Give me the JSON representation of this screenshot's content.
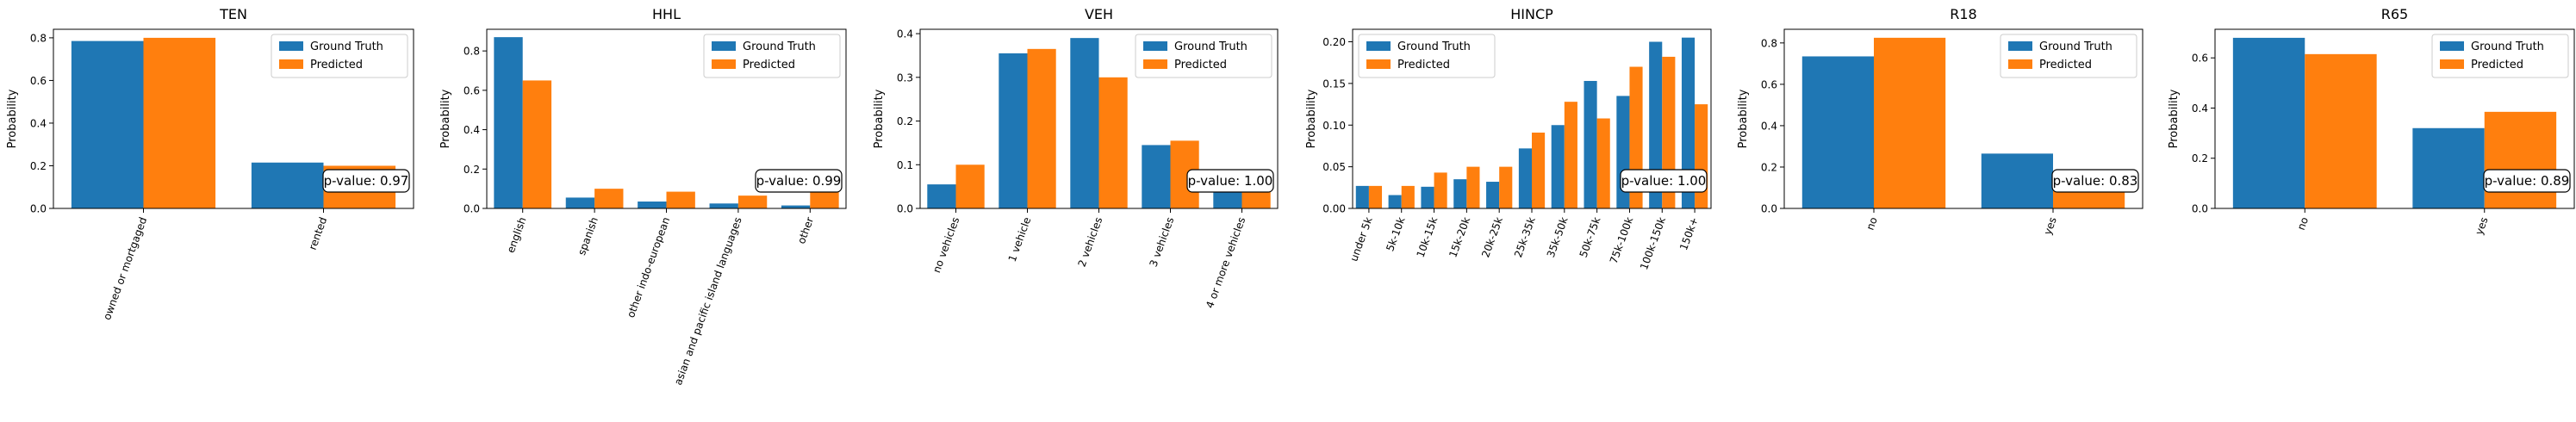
{
  "figure": {
    "legend_entries": [
      "Ground Truth",
      "Predicted"
    ],
    "colors": {
      "ground_truth": "#1f77b4",
      "predicted": "#ff7f0e"
    }
  },
  "chart_data": [
    {
      "type": "bar",
      "title": "TEN",
      "xlabel": "",
      "ylabel": "Probability",
      "categories": [
        "owned or mortgaged",
        "rented"
      ],
      "series": [
        {
          "name": "Ground Truth",
          "values": [
            0.785,
            0.215
          ]
        },
        {
          "name": "Predicted",
          "values": [
            0.8,
            0.2
          ]
        }
      ],
      "ylim": [
        0,
        0.84
      ],
      "yticks": [
        0.0,
        0.2,
        0.4,
        0.6,
        0.8
      ],
      "annotation": "p-value: 0.97",
      "legend": "upper right",
      "grid": false
    },
    {
      "type": "bar",
      "title": "HHL",
      "xlabel": "",
      "ylabel": "Probability",
      "categories": [
        "english",
        "spanish",
        "other indo-european",
        "asian and pacific island languages",
        "other"
      ],
      "series": [
        {
          "name": "Ground Truth",
          "values": [
            0.87,
            0.055,
            0.035,
            0.025,
            0.015
          ]
        },
        {
          "name": "Predicted",
          "values": [
            0.65,
            0.1,
            0.085,
            0.065,
            0.095
          ]
        }
      ],
      "ylim": [
        0,
        0.91
      ],
      "yticks": [
        0.0,
        0.2,
        0.4,
        0.6,
        0.8
      ],
      "annotation": "p-value: 0.99",
      "legend": "upper right",
      "grid": false
    },
    {
      "type": "bar",
      "title": "VEH",
      "xlabel": "",
      "ylabel": "Probability",
      "categories": [
        "no vehicles",
        "1 vehicle",
        "2 vehicles",
        "3 vehicles",
        "4 or more vehicles"
      ],
      "series": [
        {
          "name": "Ground Truth",
          "values": [
            0.055,
            0.355,
            0.39,
            0.145,
            0.06
          ]
        },
        {
          "name": "Predicted",
          "values": [
            0.1,
            0.365,
            0.3,
            0.155,
            0.08
          ]
        }
      ],
      "ylim": [
        0,
        0.41
      ],
      "yticks": [
        0.0,
        0.1,
        0.2,
        0.3,
        0.4
      ],
      "annotation": "p-value: 1.00",
      "legend": "upper right",
      "grid": false
    },
    {
      "type": "bar",
      "title": "HINCP",
      "xlabel": "",
      "ylabel": "Probability",
      "categories": [
        "under 5k",
        "5k-10k",
        "10k-15k",
        "15k-20k",
        "20k-25k",
        "25k-35k",
        "35k-50k",
        "50k-75k",
        "75k-100k",
        "100k-150k",
        "150k+"
      ],
      "series": [
        {
          "name": "Ground Truth",
          "values": [
            0.027,
            0.016,
            0.026,
            0.035,
            0.032,
            0.072,
            0.1,
            0.153,
            0.135,
            0.2,
            0.205
          ]
        },
        {
          "name": "Predicted",
          "values": [
            0.027,
            0.027,
            0.043,
            0.05,
            0.05,
            0.091,
            0.128,
            0.108,
            0.17,
            0.182,
            0.125
          ]
        }
      ],
      "ylim": [
        0,
        0.215
      ],
      "yticks": [
        0.0,
        0.05,
        0.1,
        0.15,
        0.2
      ],
      "annotation": "p-value: 1.00",
      "legend": "upper left",
      "grid": false
    },
    {
      "type": "bar",
      "title": "R18",
      "xlabel": "",
      "ylabel": "Probability",
      "categories": [
        "no",
        "yes"
      ],
      "series": [
        {
          "name": "Ground Truth",
          "values": [
            0.735,
            0.265
          ]
        },
        {
          "name": "Predicted",
          "values": [
            0.825,
            0.175
          ]
        }
      ],
      "ylim": [
        0,
        0.866
      ],
      "yticks": [
        0.0,
        0.2,
        0.4,
        0.6,
        0.8
      ],
      "annotation": "p-value: 0.83",
      "legend": "upper right",
      "grid": false
    },
    {
      "type": "bar",
      "title": "R65",
      "xlabel": "",
      "ylabel": "Probability",
      "categories": [
        "no",
        "yes"
      ],
      "series": [
        {
          "name": "Ground Truth",
          "values": [
            0.68,
            0.32
          ]
        },
        {
          "name": "Predicted",
          "values": [
            0.615,
            0.385
          ]
        }
      ],
      "ylim": [
        0,
        0.714
      ],
      "yticks": [
        0.0,
        0.2,
        0.4,
        0.6
      ],
      "annotation": "p-value: 0.89",
      "legend": "upper right",
      "grid": false
    }
  ]
}
